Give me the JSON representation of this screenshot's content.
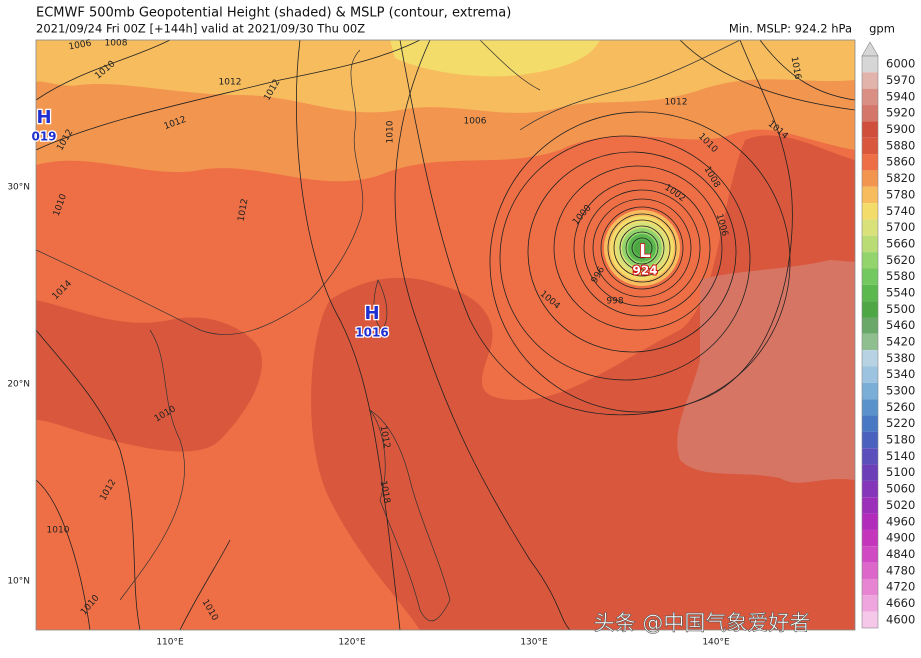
{
  "header": {
    "title": "ECMWF 500mb Geopotential Height (shaded) & MSLP (contour, extrema)",
    "subtitle": "2021/09/24 Fri 00Z [+144h] valid at 2021/09/30 Thu 00Z",
    "min_mslp": "Min. MSLP: 924.2 hPa"
  },
  "colorbar": {
    "unit": "gpm",
    "levels": [
      "6000",
      "5970",
      "5940",
      "5920",
      "5900",
      "5880",
      "5860",
      "5820",
      "5780",
      "5740",
      "5700",
      "5660",
      "5620",
      "5580",
      "5540",
      "5500",
      "5460",
      "5420",
      "5380",
      "5340",
      "5300",
      "5260",
      "5220",
      "5180",
      "5140",
      "5100",
      "5060",
      "5020",
      "4960",
      "4900",
      "4840",
      "4780",
      "4720",
      "4660",
      "4600"
    ],
    "colors": [
      "#d6d6d6",
      "#e2b3aa",
      "#d98f83",
      "#d4776a",
      "#cf4f3c",
      "#d9573c",
      "#ee6e45",
      "#f2954f",
      "#f6bc5e",
      "#f4dc6a",
      "#d9e27a",
      "#b9dc74",
      "#94d46c",
      "#73c85f",
      "#5bb84f",
      "#4fa644",
      "#6aa86a",
      "#8fbf8f",
      "#b7d3e3",
      "#9cc3df",
      "#7aaed6",
      "#5a93cb",
      "#4878c3",
      "#4a62bd",
      "#5a4fbb",
      "#6c3fb8",
      "#8435b9",
      "#9c2fba",
      "#b22cbc",
      "#c437bd",
      "#d04bc3",
      "#dc66ca",
      "#e785d3",
      "#efa6df",
      "#f5c8ea"
    ]
  },
  "map": {
    "lat_labels": [
      "30°N",
      "20°N",
      "10°N"
    ],
    "lon_labels": [
      "110°E",
      "120°E",
      "130°E",
      "140°E"
    ],
    "extrema": [
      {
        "type": "H",
        "value": "019"
      },
      {
        "type": "H",
        "value": "1016"
      },
      {
        "type": "L",
        "value": "924"
      }
    ],
    "contour_labels": [
      "1006",
      "1008",
      "1010",
      "1012",
      "1012",
      "1012",
      "1012",
      "1010",
      "1014",
      "1012",
      "1010",
      "1006",
      "1012",
      "1016",
      "1014",
      "1010",
      "1008",
      "1006",
      "1002",
      "1000",
      "1004",
      "998",
      "996",
      "1010",
      "1012",
      "1018",
      "1010",
      "1012",
      "1010",
      "1010"
    ]
  },
  "watermark": "头条 @中国气象爱好者"
}
